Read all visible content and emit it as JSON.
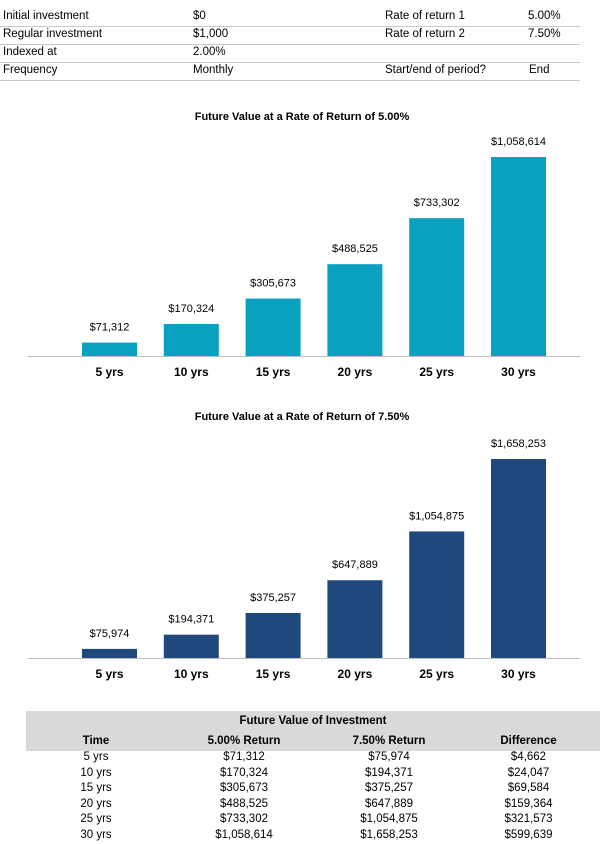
{
  "params": [
    {
      "label": "Initial investment",
      "value": "$0",
      "label2": "Rate of return 1",
      "value2": "5.00%"
    },
    {
      "label": "Regular investment",
      "value": "$1,000",
      "label2": "Rate of return 2",
      "value2": "7.50%"
    },
    {
      "label": "Indexed at",
      "value": "2.00%",
      "label2": "",
      "value2": ""
    },
    {
      "label": "Frequency",
      "value": "Monthly",
      "label2": "Start/end of period?",
      "value2": "End"
    }
  ],
  "colors": {
    "series1": "#0aa0c0",
    "series2": "#1f497d",
    "axis": "#bfbfbf",
    "table_header": "#d9d9d9"
  },
  "chart_data": [
    {
      "type": "bar",
      "title": "Future Value at a Rate of Return of 5.00%",
      "categories": [
        "5 yrs",
        "10 yrs",
        "15 yrs",
        "20 yrs",
        "25 yrs",
        "30 yrs"
      ],
      "values": [
        71312,
        170324,
        305673,
        488525,
        733302,
        1058614
      ],
      "labels": [
        "$71,312",
        "$170,324",
        "$305,673",
        "$488,525",
        "$733,302",
        "$1,058,614"
      ],
      "ylim": [
        0,
        1058614
      ],
      "xlabel": "",
      "ylabel": ""
    },
    {
      "type": "bar",
      "title": "Future Value at a Rate of Return of 7.50%",
      "categories": [
        "5 yrs",
        "10 yrs",
        "15 yrs",
        "20 yrs",
        "25 yrs",
        "30 yrs"
      ],
      "values": [
        75974,
        194371,
        375257,
        647889,
        1054875,
        1658253
      ],
      "labels": [
        "$75,974",
        "$194,371",
        "$375,257",
        "$647,889",
        "$1,054,875",
        "$1,658,253"
      ],
      "ylim": [
        0,
        1658253
      ],
      "xlabel": "",
      "ylabel": ""
    }
  ],
  "table": {
    "title": "Future Value of Investment",
    "headers": [
      "Time",
      "5.00% Return",
      "7.50% Return",
      "Difference"
    ],
    "rows": [
      [
        "5 yrs",
        "$71,312",
        "$75,974",
        "$4,662"
      ],
      [
        "10 yrs",
        "$170,324",
        "$194,371",
        "$24,047"
      ],
      [
        "15 yrs",
        "$305,673",
        "$375,257",
        "$69,584"
      ],
      [
        "20 yrs",
        "$488,525",
        "$647,889",
        "$159,364"
      ],
      [
        "25 yrs",
        "$733,302",
        "$1,054,875",
        "$321,573"
      ],
      [
        "30 yrs",
        "$1,058,614",
        "$1,658,253",
        "$599,639"
      ]
    ]
  }
}
